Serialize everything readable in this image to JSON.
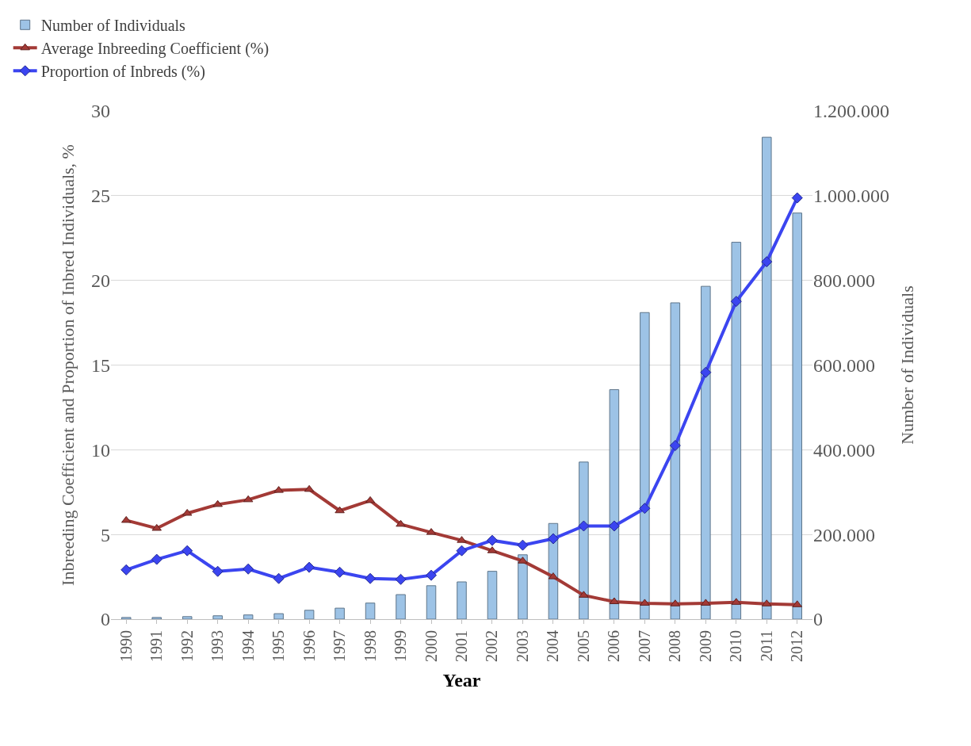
{
  "chart_data": {
    "type": "line",
    "xlabel": "Year",
    "ylabel": "Inbreeding Coefficient and Proportion of Inbred Individuals, %",
    "y2label": "Number of Individuals",
    "categories": [
      "1990",
      "1991",
      "1992",
      "1993",
      "1994",
      "1995",
      "1996",
      "1997",
      "1998",
      "1999",
      "2000",
      "2001",
      "2002",
      "2003",
      "2004",
      "2005",
      "2006",
      "2007",
      "2008",
      "2009",
      "2010",
      "2011",
      "2012"
    ],
    "series": [
      {
        "name": "Number of Individuals",
        "type": "bar",
        "axis": "y2",
        "color": "#9dc3e6",
        "values": [
          4000,
          4000,
          6000,
          8000,
          10000,
          13000,
          21000,
          26000,
          38000,
          58000,
          79000,
          88000,
          113000,
          152000,
          226000,
          371000,
          542000,
          724000,
          747000,
          786000,
          890000,
          1138000,
          959000
        ]
      },
      {
        "name": "Average Inbreeding Coefficient (%)",
        "marker": "triangle",
        "color": "#a33a36",
        "values": [
          5.83,
          5.36,
          6.25,
          6.77,
          7.05,
          7.6,
          7.66,
          6.4,
          7.0,
          5.6,
          5.12,
          4.65,
          4.04,
          3.43,
          2.5,
          1.41,
          1.03,
          0.94,
          0.9,
          0.94,
          0.99,
          0.9,
          0.85
        ]
      },
      {
        "name": "Proportion of Inbreds (%)",
        "marker": "diamond",
        "color": "#3b45f0",
        "values": [
          2.91,
          3.53,
          4.04,
          2.82,
          2.96,
          2.4,
          3.06,
          2.77,
          2.4,
          2.35,
          2.59,
          4.04,
          4.65,
          4.37,
          4.75,
          5.5,
          5.5,
          6.54,
          10.25,
          14.57,
          18.76,
          21.1,
          24.87
        ]
      }
    ],
    "ylim": [
      0,
      30
    ],
    "yticks": [
      0,
      5,
      10,
      15,
      20,
      25,
      30
    ],
    "y2lim": [
      0,
      1200000
    ],
    "y2ticks": [
      0,
      {
        "value": 200000,
        "label": "200.000"
      },
      {
        "value": 400000,
        "label": "400.000"
      },
      {
        "value": 600000,
        "label": "600.000"
      },
      {
        "value": 800000,
        "label": "800.000"
      },
      {
        "value": 1000000,
        "label": "1.000.000"
      },
      {
        "value": 1200000,
        "label": "1.200.000"
      }
    ],
    "grid": "y",
    "legend": "top left"
  }
}
